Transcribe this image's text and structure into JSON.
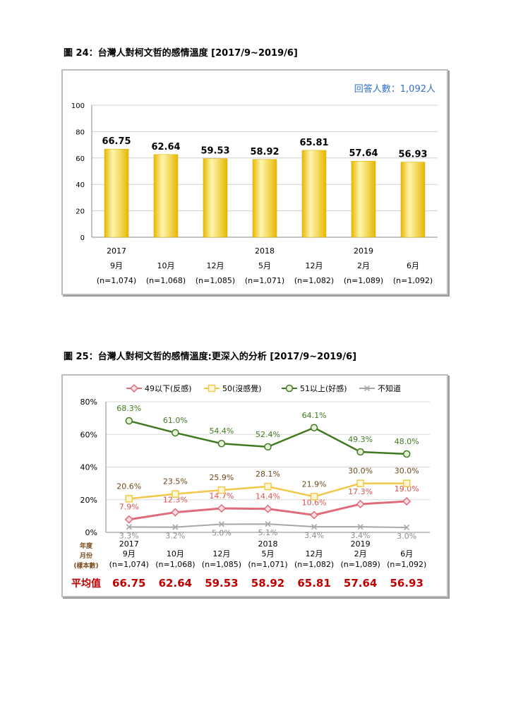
{
  "fig24": {
    "title": "圖 24：台灣人對柯文哲的感情溫度  [2017/9~2019/6]",
    "respondents": "回答人數：1,092人"
  },
  "fig25": {
    "title": "圖 25：台灣人對柯文哲的感情溫度:更深入的分析  [2017/9~2019/6]",
    "side_labels": [
      "年度",
      "月份",
      "(樣本數)"
    ],
    "average_label": "平均值",
    "average_values": [
      "66.75",
      "62.64",
      "59.53",
      "58.92",
      "65.81",
      "57.64",
      "56.93"
    ]
  },
  "x_axis": {
    "years": [
      "2017",
      "",
      "",
      "2018",
      "",
      "2019",
      ""
    ],
    "months": [
      "9月",
      "10月",
      "12月",
      "5月",
      "12月",
      "2月",
      "6月"
    ],
    "samples": [
      "(n=1,074)",
      "(n=1,068)",
      "(n=1,085)",
      "(n=1,071)",
      "(n=1,082)",
      "(n=1,089)",
      "(n=1,092)"
    ]
  },
  "colors": {
    "bar_light": "#fff6b0",
    "bar_dark": "#e6b800",
    "red": "#e06b7a",
    "yellow": "#f2c84b",
    "green": "#3f7a1e",
    "gray": "#a6a6a6",
    "avg_text": "#c00000",
    "respondents": "#2f6fd0"
  },
  "chart_data": [
    {
      "type": "bar",
      "categories": [
        "2017 9月",
        "10月",
        "12月",
        "2018 5月",
        "12月",
        "2019 2月",
        "6月"
      ],
      "values": [
        66.75,
        62.64,
        59.53,
        58.92,
        65.81,
        57.64,
        56.93
      ],
      "value_labels": [
        "66.75",
        "62.64",
        "59.53",
        "58.92",
        "65.81",
        "57.64",
        "56.93"
      ],
      "ylim": [
        0,
        100
      ],
      "yticks": [
        "0",
        "20",
        "40",
        "60",
        "80",
        "100"
      ],
      "grid": true
    },
    {
      "type": "line",
      "categories": [
        "2017 9月",
        "10月",
        "12月",
        "2018 5月",
        "12月",
        "2019 2月",
        "6月"
      ],
      "ylim": [
        0,
        80
      ],
      "yticks": [
        "0%",
        "20%",
        "40%",
        "60%",
        "80%"
      ],
      "grid": true,
      "legend_position": "top",
      "series": [
        {
          "name": "49以下(反感)",
          "values": [
            7.9,
            12.3,
            14.7,
            14.4,
            10.6,
            17.3,
            19.0
          ],
          "labels": [
            "7.9%",
            "12.3%",
            "14.7%",
            "14.4%",
            "10.6%",
            "17.3%",
            "19.0%"
          ],
          "marker": "diamond",
          "color": "#e06b7a"
        },
        {
          "name": "50(沒感覺)",
          "values": [
            20.6,
            23.5,
            25.9,
            28.1,
            21.9,
            30.0,
            30.0
          ],
          "labels": [
            "20.6%",
            "23.5%",
            "25.9%",
            "28.1%",
            "21.9%",
            "30.0%",
            "30.0%"
          ],
          "marker": "square",
          "color": "#f2c84b"
        },
        {
          "name": "51以上(好感)",
          "values": [
            68.3,
            61.0,
            54.4,
            52.4,
            64.1,
            49.3,
            48.0
          ],
          "labels": [
            "68.3%",
            "61.0%",
            "54.4%",
            "52.4%",
            "64.1%",
            "49.3%",
            "48.0%"
          ],
          "marker": "circle",
          "color": "#3f7a1e"
        },
        {
          "name": "不知道",
          "values": [
            3.3,
            3.2,
            5.0,
            5.1,
            3.4,
            3.4,
            3.0
          ],
          "labels": [
            "3.3%",
            "3.2%",
            "5.0%",
            "5.1%",
            "3.4%",
            "3.4%",
            "3.0%"
          ],
          "marker": "x",
          "color": "#a6a6a6"
        }
      ]
    }
  ]
}
